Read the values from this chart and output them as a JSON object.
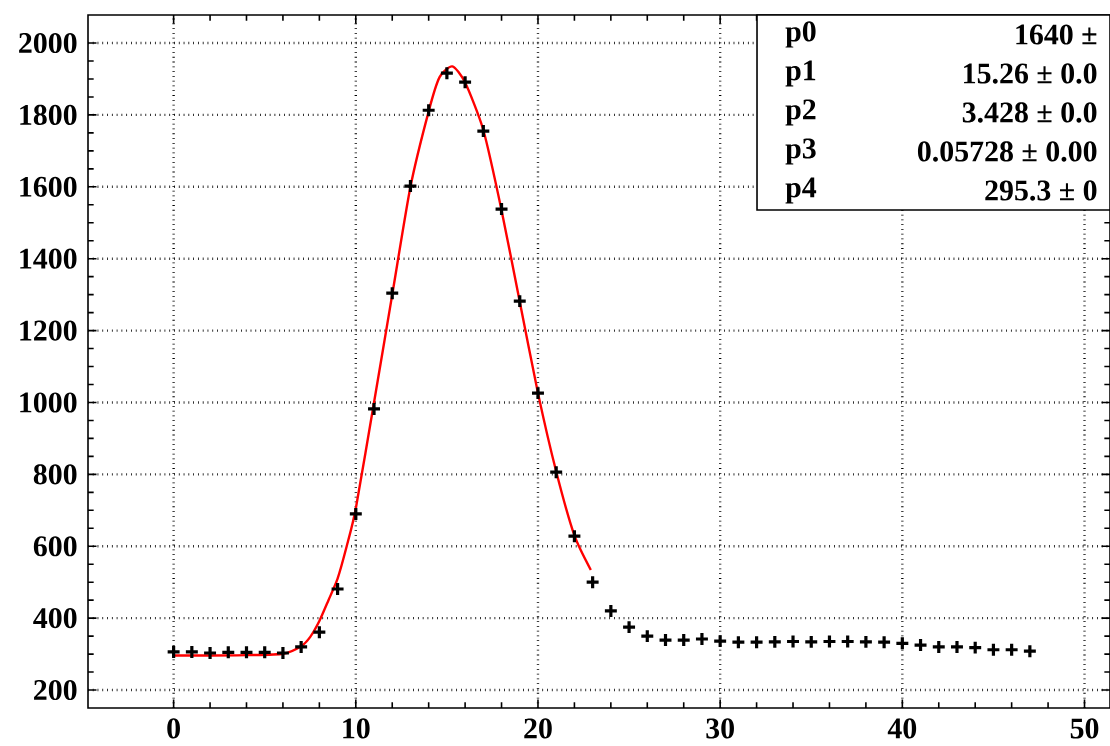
{
  "chart_data": {
    "type": "scatter",
    "xlim": [
      -4.7,
      51.4
    ],
    "ylim": [
      150,
      2078
    ],
    "xticks": [
      0,
      10,
      20,
      30,
      40,
      50
    ],
    "yticks": [
      200,
      400,
      600,
      800,
      1000,
      1200,
      1400,
      1600,
      1800,
      2000
    ],
    "grid": true,
    "series": [
      {
        "type": "scatter",
        "marker": "cross",
        "color": "#000000",
        "x": [
          0,
          1,
          2,
          3,
          4,
          5,
          6,
          7,
          8,
          9,
          10,
          11,
          12,
          13,
          14,
          15,
          16,
          17,
          18,
          19,
          20,
          21,
          22,
          23,
          24,
          25,
          26,
          27,
          28,
          29,
          30,
          31,
          32,
          33,
          34,
          35,
          36,
          37,
          38,
          39,
          40,
          41,
          42,
          43,
          44,
          45,
          46,
          47
        ],
        "values": [
          306,
          306,
          303,
          305,
          305,
          305,
          303,
          320,
          361,
          481,
          690,
          982,
          1304,
          1602,
          1813,
          1916,
          1891,
          1755,
          1538,
          1282,
          1026,
          806,
          628,
          500,
          420,
          375,
          350,
          339,
          339,
          342,
          336,
          333,
          333,
          334,
          335,
          334,
          335,
          335,
          334,
          333,
          330,
          325,
          320,
          320,
          318,
          312,
          312,
          308
        ]
      },
      {
        "type": "line",
        "marker": "none",
        "color": "#ff0000",
        "x": [
          0,
          2,
          4,
          6,
          7,
          7.5,
          8,
          8.5,
          9,
          9.5,
          10,
          11,
          12,
          13,
          14,
          14.6,
          15.3,
          16,
          17,
          18,
          19,
          20,
          21,
          22,
          22.9
        ],
        "values": [
          296,
          296,
          297,
          301,
          322,
          348,
          392,
          450,
          510,
          600,
          705,
          1000,
          1300,
          1600,
          1810,
          1905,
          1935,
          1890,
          1758,
          1535,
          1280,
          1026,
          808,
          630,
          534
        ]
      }
    ],
    "annotations": [
      "p0",
      "1640 ±",
      "p1",
      "15.26 ± 0.0",
      "p2",
      "3.428 ± 0.0",
      "p3",
      "0.05728 ± 0.00",
      "p4",
      "295.3 ± 0"
    ]
  }
}
